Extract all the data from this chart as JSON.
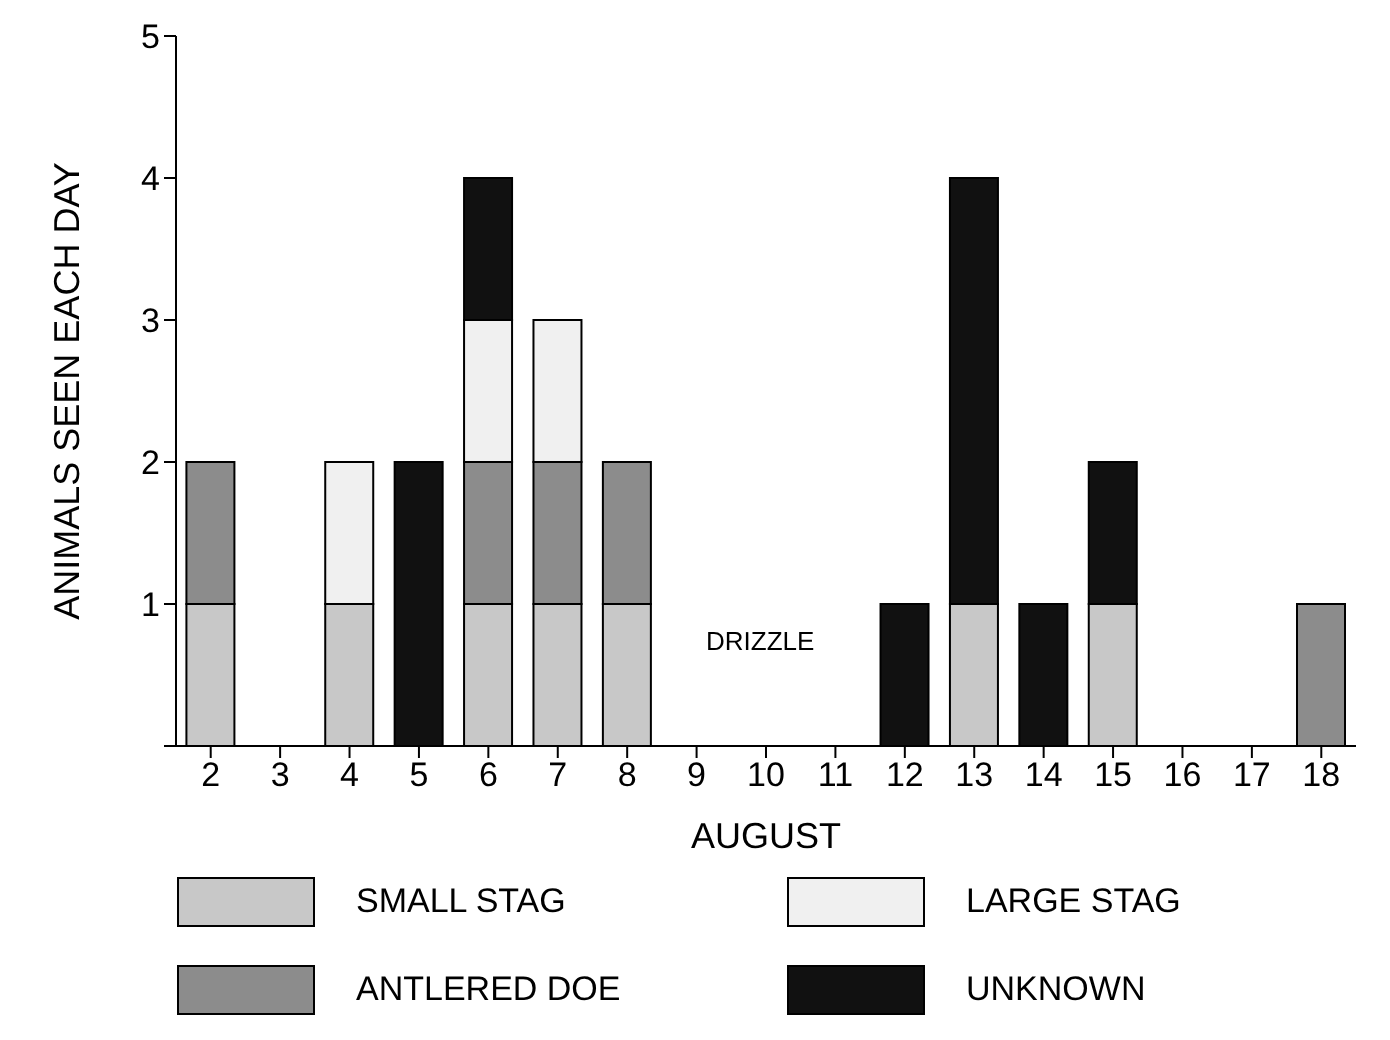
{
  "chart_data": {
    "type": "bar",
    "stacked": true,
    "xlabel": "AUGUST",
    "ylabel": "ANIMALS SEEN EACH DAY",
    "categories": [
      "2",
      "3",
      "4",
      "5",
      "6",
      "7",
      "8",
      "9",
      "10",
      "11",
      "12",
      "13",
      "14",
      "15",
      "16",
      "17",
      "18"
    ],
    "series": [
      {
        "name": "SMALL STAG",
        "color": "#c8c8c8",
        "values": [
          1,
          0,
          1,
          0,
          1,
          1,
          1,
          0,
          0,
          0,
          0,
          1,
          0,
          1,
          0,
          0,
          0
        ]
      },
      {
        "name": "ANTLERED DOE",
        "color": "#8c8c8c",
        "values": [
          1,
          0,
          0,
          0,
          1,
          1,
          1,
          0,
          0,
          0,
          0,
          0,
          0,
          0,
          0,
          0,
          1
        ]
      },
      {
        "name": "LARGE STAG",
        "color": "#f0f0f0",
        "values": [
          0,
          0,
          1,
          0,
          1,
          1,
          0,
          0,
          0,
          0,
          0,
          0,
          0,
          0,
          0,
          0,
          0
        ]
      },
      {
        "name": "UNKNOWN",
        "color": "#111111",
        "values": [
          0,
          0,
          0,
          2,
          1,
          0,
          0,
          0,
          0,
          0,
          1,
          3,
          1,
          1,
          0,
          0,
          0
        ]
      }
    ],
    "ylim": [
      0,
      5
    ],
    "yticks": [
      {
        "value": 0,
        "label": null
      },
      1,
      2,
      3,
      4,
      5
    ],
    "grid": false,
    "legend": "bottom",
    "annotations": [
      "DRIZZLE"
    ]
  }
}
